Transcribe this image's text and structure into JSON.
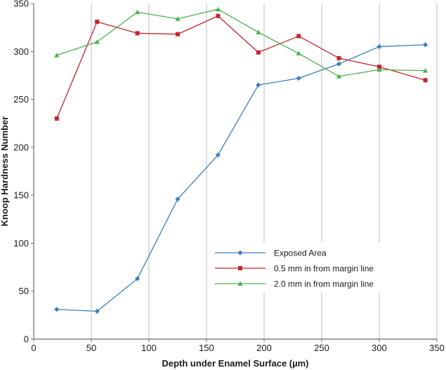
{
  "chart_data": {
    "type": "line",
    "xlabel": "Depth under Enamel Surface (µm)",
    "ylabel": "Knoop Hardness Number",
    "xlim": [
      0,
      350
    ],
    "ylim": [
      0,
      350
    ],
    "xticks": [
      0,
      50,
      100,
      150,
      200,
      250,
      300,
      350
    ],
    "yticks": [
      0,
      50,
      100,
      150,
      200,
      250,
      300,
      350
    ],
    "grid": "vertical",
    "legend_position": "bottom-right",
    "series": [
      {
        "name": "Exposed Area",
        "color": "#3a7fbf",
        "marker": "diamond",
        "x": [
          20,
          55,
          90,
          125,
          160,
          195,
          230,
          265,
          300,
          340
        ],
        "y": [
          31,
          29,
          63,
          146,
          192,
          265,
          272,
          287,
          305,
          307
        ]
      },
      {
        "name": "0.5 mm in from margin line",
        "color": "#c3262d",
        "marker": "square",
        "x": [
          20,
          55,
          90,
          125,
          160,
          195,
          230,
          265,
          300,
          340
        ],
        "y": [
          230,
          331,
          319,
          318,
          337,
          299,
          316,
          293,
          284,
          270
        ]
      },
      {
        "name": "2.0 mm in from margin line",
        "color": "#4caf50",
        "marker": "triangle",
        "x": [
          20,
          55,
          90,
          125,
          160,
          195,
          230,
          265,
          300,
          340
        ],
        "y": [
          296,
          310,
          341,
          334,
          344,
          320,
          298,
          274,
          281,
          280
        ]
      }
    ]
  }
}
